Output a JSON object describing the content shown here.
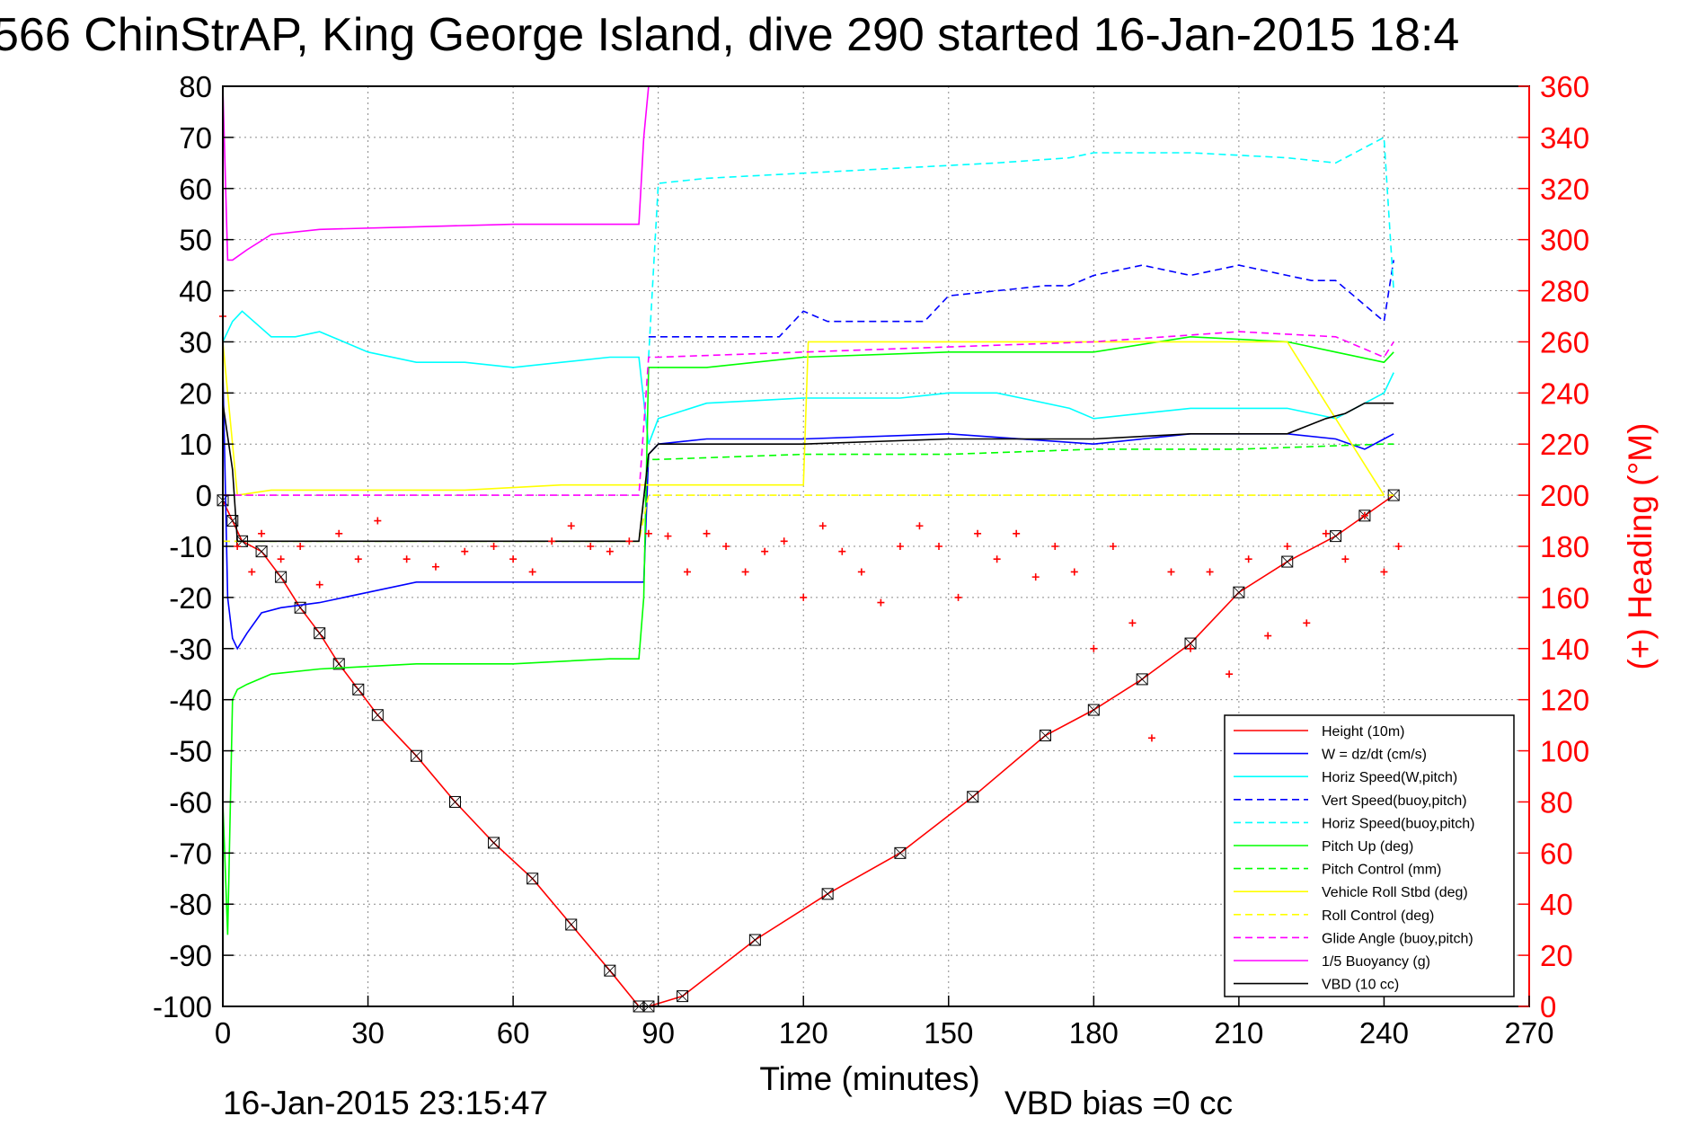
{
  "chart_data": {
    "type": "line",
    "title": "566 ChinStrAP, King George Island, dive 290 started 16-Jan-2015 18:4",
    "xlabel": "Time (minutes)",
    "ylabel_right": "(+) Heading (°M)",
    "xlim": [
      0,
      270
    ],
    "ylim": [
      -100,
      80
    ],
    "ylim_right": [
      0,
      360
    ],
    "x_ticks": [
      0,
      30,
      60,
      90,
      120,
      150,
      180,
      210,
      240,
      270
    ],
    "y_ticks": [
      80,
      70,
      60,
      50,
      40,
      30,
      20,
      10,
      0,
      -10,
      -20,
      -30,
      -40,
      -50,
      -60,
      -70,
      -80,
      -90,
      -100
    ],
    "y_ticks_right": [
      360,
      340,
      320,
      300,
      280,
      260,
      240,
      220,
      200,
      180,
      160,
      140,
      120,
      100,
      80,
      60,
      40,
      20,
      0
    ],
    "grid": true,
    "legend_position": "bottom-right",
    "bottom_left_text": "16-Jan-2015 23:15:47",
    "bottom_right_text": "VBD bias =0 cc",
    "colors": {
      "red": "#ff0000",
      "blue": "#0000ff",
      "cyan": "#00ffff",
      "green": "#00ff00",
      "yellow": "#ffff00",
      "magenta": "#ff00ff",
      "black": "#000000",
      "grid": "#8a8a8a"
    },
    "series": [
      {
        "name": "Height (10m)",
        "color": "#ff0000",
        "style": "solid",
        "x": [
          0,
          2,
          4,
          8,
          12,
          16,
          20,
          24,
          28,
          32,
          40,
          48,
          56,
          64,
          72,
          80,
          86,
          88,
          95,
          110,
          125,
          140,
          155,
          170,
          180,
          190,
          200,
          210,
          220,
          230,
          236,
          242
        ],
        "y": [
          -1,
          -5,
          -9,
          -11,
          -16,
          -22,
          -27,
          -33,
          -38,
          -43,
          -51,
          -60,
          -68,
          -75,
          -84,
          -93,
          -100,
          -100,
          -98,
          -87,
          -78,
          -70,
          -59,
          -47,
          -42,
          -36,
          -29,
          -19,
          -13,
          -8,
          -4,
          0
        ]
      },
      {
        "name": "W = dz/dt (cm/s)",
        "color": "#0000ff",
        "style": "solid",
        "x": [
          0,
          1,
          2,
          3,
          5,
          8,
          12,
          20,
          30,
          40,
          50,
          60,
          70,
          80,
          87,
          88,
          90,
          100,
          120,
          150,
          180,
          200,
          220,
          230,
          236,
          240,
          242
        ],
        "y": [
          25,
          -20,
          -28,
          -30,
          -27,
          -23,
          -22,
          -21,
          -19,
          -17,
          -17,
          -17,
          -17,
          -17,
          -17,
          8,
          10,
          11,
          11,
          12,
          10,
          12,
          12,
          11,
          9,
          11,
          12
        ]
      },
      {
        "name": "Horiz Speed(W,pitch)",
        "color": "#00ffff",
        "style": "solid",
        "x": [
          0,
          2,
          4,
          10,
          15,
          20,
          30,
          40,
          50,
          60,
          70,
          80,
          86,
          88,
          90,
          100,
          120,
          140,
          150,
          160,
          175,
          180,
          200,
          220,
          230,
          236,
          240,
          242
        ],
        "y": [
          30,
          34,
          36,
          31,
          31,
          32,
          28,
          26,
          26,
          25,
          26,
          27,
          27,
          10,
          15,
          18,
          19,
          19,
          20,
          20,
          17,
          15,
          17,
          17,
          15,
          18,
          20,
          24
        ]
      },
      {
        "name": "Vert Speed(buoy,pitch)",
        "color": "#0000ff",
        "style": "dashed",
        "x": [
          88,
          90,
          100,
          115,
          120,
          125,
          135,
          145,
          150,
          160,
          170,
          175,
          180,
          190,
          200,
          210,
          220,
          225,
          230,
          235,
          240,
          242
        ],
        "y": [
          31,
          31,
          31,
          31,
          36,
          34,
          34,
          34,
          39,
          40,
          41,
          41,
          43,
          45,
          43,
          45,
          43,
          42,
          42,
          38,
          34,
          46
        ]
      },
      {
        "name": "Horiz Speed(buoy,pitch)",
        "color": "#00ffff",
        "style": "dashed",
        "x": [
          88,
          90,
          100,
          120,
          140,
          160,
          175,
          180,
          200,
          220,
          230,
          240,
          242
        ],
        "y": [
          27,
          61,
          62,
          63,
          64,
          65,
          66,
          67,
          67,
          66,
          65,
          70,
          40
        ]
      },
      {
        "name": "Pitch Up (deg)",
        "color": "#00ff00",
        "style": "solid",
        "x": [
          0,
          1,
          2,
          3,
          5,
          10,
          20,
          40,
          60,
          80,
          86,
          87,
          88,
          90,
          100,
          120,
          150,
          180,
          200,
          220,
          230,
          240,
          242
        ],
        "y": [
          -60,
          -86,
          -40,
          -38,
          -37,
          -35,
          -34,
          -33,
          -33,
          -32,
          -32,
          -20,
          25,
          25,
          25,
          27,
          28,
          28,
          31,
          30,
          28,
          26,
          28
        ]
      },
      {
        "name": "Pitch Control (mm)",
        "color": "#00ff00",
        "style": "dashed",
        "x": [
          0,
          2,
          10,
          50,
          86,
          88,
          90,
          120,
          150,
          180,
          210,
          240,
          242
        ],
        "y": [
          -9,
          -9,
          -9,
          -9,
          -9,
          7,
          7,
          8,
          8,
          9,
          9,
          10,
          10
        ]
      },
      {
        "name": "Vehicle Roll Stbd (deg)",
        "color": "#ffff00",
        "style": "solid",
        "x": [
          0,
          3,
          10,
          30,
          50,
          70,
          86,
          88,
          120,
          121,
          150,
          180,
          200,
          220,
          240
        ],
        "y": [
          30,
          0,
          1,
          1,
          1,
          2,
          2,
          2,
          2,
          30,
          30,
          30,
          30,
          30,
          0
        ]
      },
      {
        "name": "Roll Control (deg)",
        "color": "#ffff00",
        "style": "dashed",
        "x": [
          0,
          3,
          40,
          86,
          88,
          240,
          242
        ],
        "y": [
          -9,
          -9,
          -9,
          -9,
          0,
          0,
          0
        ]
      },
      {
        "name": "Glide Angle (buoy,pitch)",
        "color": "#ff00ff",
        "style": "dashed",
        "x": [
          0,
          3,
          40,
          86,
          88,
          90,
          120,
          150,
          180,
          210,
          230,
          240,
          242
        ],
        "y": [
          0,
          0,
          0,
          0,
          27,
          27,
          28,
          29,
          30,
          32,
          31,
          27,
          30
        ]
      },
      {
        "name": "1/5 Buoyancy (g)",
        "color": "#ff00ff",
        "style": "solid",
        "x": [
          0,
          1,
          2,
          5,
          10,
          20,
          40,
          60,
          80,
          86,
          87,
          88
        ],
        "y": [
          80,
          46,
          46,
          48,
          51,
          52,
          52.5,
          53,
          53,
          53,
          70,
          80
        ]
      },
      {
        "name": "VBD (10 cc)",
        "color": "#000000",
        "style": "solid",
        "x": [
          0,
          2,
          3,
          86,
          88,
          90,
          100,
          120,
          150,
          180,
          200,
          220,
          228,
          232,
          236,
          242
        ],
        "y": [
          18,
          5,
          -9,
          -9,
          8,
          10,
          10,
          10,
          11,
          11,
          12,
          12,
          15,
          16,
          18,
          18
        ]
      },
      {
        "name": "(+) Heading (°M)",
        "color": "#ff0000",
        "style": "markers",
        "axis": "right",
        "x": [
          0,
          3,
          6,
          8,
          12,
          16,
          20,
          24,
          28,
          32,
          38,
          44,
          50,
          56,
          60,
          64,
          68,
          72,
          76,
          80,
          84,
          88,
          92,
          96,
          100,
          104,
          108,
          112,
          116,
          120,
          124,
          128,
          132,
          136,
          140,
          144,
          148,
          152,
          156,
          160,
          164,
          168,
          172,
          176,
          180,
          184,
          188,
          192,
          196,
          200,
          204,
          208,
          212,
          216,
          220,
          224,
          228,
          232,
          236,
          240,
          243
        ],
        "y": [
          270,
          180,
          170,
          185,
          175,
          180,
          165,
          185,
          175,
          190,
          175,
          172,
          178,
          180,
          175,
          170,
          182,
          188,
          180,
          178,
          182,
          185,
          184,
          170,
          185,
          180,
          170,
          178,
          182,
          160,
          188,
          178,
          170,
          158,
          180,
          188,
          180,
          160,
          185,
          175,
          185,
          168,
          180,
          170,
          140,
          180,
          150,
          105,
          170,
          140,
          170,
          130,
          175,
          145,
          180,
          150,
          185,
          175,
          192,
          170,
          180
        ]
      }
    ]
  }
}
